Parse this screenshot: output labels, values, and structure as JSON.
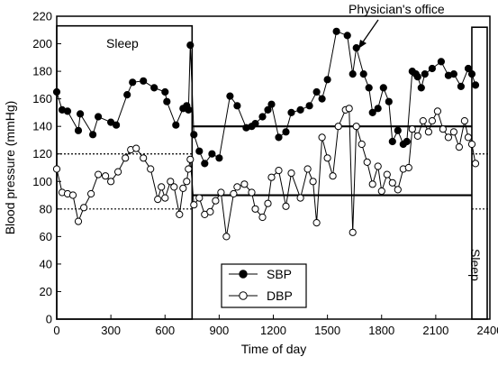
{
  "chart_data": {
    "type": "line",
    "xlabel": "Time of day",
    "ylabel": "Blood pressure (mmHg)",
    "xlim": [
      0,
      2400
    ],
    "ylim": [
      0,
      220
    ],
    "xticks": [
      0,
      300,
      600,
      900,
      1200,
      1500,
      1800,
      2100,
      2400
    ],
    "xtick_labels": [
      "0",
      "300",
      "600",
      "900",
      "1200",
      "1500",
      "1800",
      "2100",
      "2400"
    ],
    "yticks": [
      0,
      20,
      40,
      60,
      80,
      100,
      120,
      140,
      160,
      180,
      200,
      220
    ],
    "ytick_labels": [
      "0",
      "20",
      "40",
      "60",
      "80",
      "100",
      "120",
      "140",
      "160",
      "180",
      "200",
      "220"
    ],
    "grid": false,
    "legend_position": "bottom-center",
    "series": [
      {
        "name": "SBP",
        "marker": "filled-circle",
        "color": "#000000",
        "x": [
          0,
          30,
          60,
          120,
          130,
          200,
          230,
          300,
          330,
          390,
          420,
          480,
          540,
          600,
          610,
          660,
          700,
          720,
          730,
          740,
          760,
          790,
          820,
          860,
          900,
          960,
          1000,
          1050,
          1080,
          1100,
          1140,
          1170,
          1190,
          1230,
          1270,
          1300,
          1350,
          1400,
          1440,
          1470,
          1500,
          1550,
          1610,
          1640,
          1660,
          1700,
          1730,
          1750,
          1780,
          1810,
          1840,
          1860,
          1890,
          1920,
          1940,
          1970,
          1990,
          2000,
          2020,
          2040,
          2080,
          2130,
          2170,
          2200,
          2240,
          2280,
          2300,
          2320
        ],
        "y": [
          165,
          152,
          151,
          137,
          149,
          134,
          147,
          143,
          141,
          163,
          172,
          173,
          168,
          165,
          158,
          141,
          153,
          155,
          152,
          199,
          134,
          122,
          113,
          120,
          117,
          162,
          155,
          139,
          140,
          142,
          147,
          152,
          156,
          132,
          136,
          150,
          152,
          155,
          165,
          160,
          174,
          209,
          206,
          178,
          197,
          178,
          168,
          150,
          153,
          168,
          158,
          129,
          137,
          127,
          129,
          180,
          178,
          176,
          168,
          178,
          182,
          187,
          177,
          178,
          169,
          182,
          178,
          170
        ]
      },
      {
        "name": "DBP",
        "marker": "open-circle",
        "color": "#000000",
        "x": [
          0,
          30,
          60,
          90,
          120,
          150,
          190,
          230,
          270,
          300,
          340,
          380,
          410,
          440,
          480,
          520,
          560,
          580,
          600,
          630,
          650,
          680,
          700,
          720,
          730,
          740,
          760,
          790,
          820,
          850,
          880,
          910,
          940,
          980,
          1000,
          1040,
          1080,
          1100,
          1140,
          1170,
          1190,
          1230,
          1270,
          1300,
          1350,
          1390,
          1420,
          1440,
          1470,
          1500,
          1530,
          1560,
          1600,
          1620,
          1640,
          1660,
          1690,
          1720,
          1750,
          1780,
          1800,
          1830,
          1860,
          1890,
          1920,
          1950,
          1970,
          2000,
          2030,
          2060,
          2080,
          2110,
          2140,
          2170,
          2200,
          2230,
          2260,
          2280,
          2300,
          2320
        ],
        "y": [
          109,
          92,
          91,
          90,
          71,
          81,
          91,
          105,
          104,
          100,
          107,
          117,
          123,
          124,
          117,
          109,
          87,
          96,
          88,
          100,
          96,
          76,
          95,
          100,
          109,
          116,
          83,
          88,
          76,
          78,
          86,
          92,
          60,
          91,
          96,
          98,
          92,
          80,
          74,
          84,
          103,
          108,
          82,
          106,
          88,
          109,
          100,
          70,
          132,
          117,
          104,
          140,
          152,
          153,
          63,
          140,
          127,
          114,
          98,
          111,
          93,
          105,
          99,
          94,
          109,
          110,
          138,
          133,
          144,
          136,
          144,
          151,
          138,
          132,
          136,
          125,
          144,
          132,
          127,
          113
        ]
      }
    ],
    "annotations": {
      "sleep_left": "Sleep",
      "sleep_right": "Sleep",
      "callout": "Physician's office"
    },
    "reference_lines": {
      "night_thresholds": [
        120,
        80
      ],
      "day_thresholds": [
        140,
        90
      ]
    }
  }
}
